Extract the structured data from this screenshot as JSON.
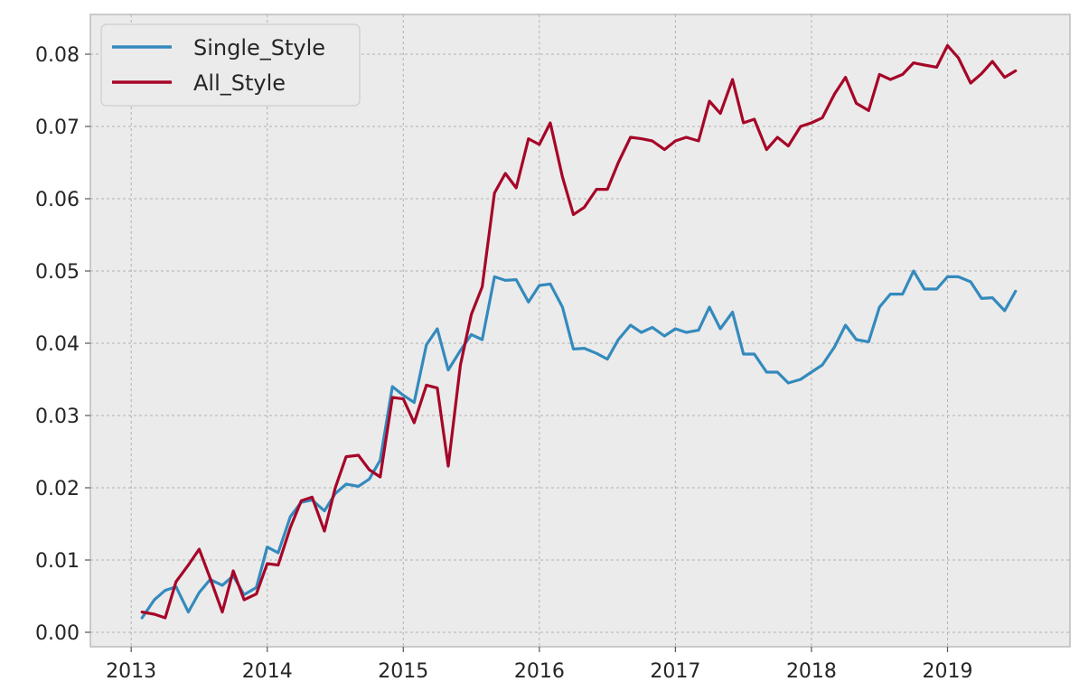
{
  "chart_data": {
    "type": "line",
    "title": "",
    "xlabel": "",
    "ylabel": "",
    "xlim": [
      2012.7,
      2019.9
    ],
    "ylim": [
      -0.002,
      0.0855
    ],
    "x_ticks": [
      "2013",
      "2014",
      "2015",
      "2016",
      "2017",
      "2018",
      "2019"
    ],
    "y_ticks": [
      "0.00",
      "0.01",
      "0.02",
      "0.03",
      "0.04",
      "0.05",
      "0.06",
      "0.07",
      "0.08"
    ],
    "grid": true,
    "legend_position": "top-left",
    "series": [
      {
        "name": "Single_Style",
        "color": "#348abd",
        "x": [
          2013.08,
          2013.17,
          2013.25,
          2013.33,
          2013.42,
          2013.5,
          2013.58,
          2013.67,
          2013.75,
          2013.83,
          2013.92,
          2014.0,
          2014.08,
          2014.17,
          2014.25,
          2014.33,
          2014.42,
          2014.5,
          2014.58,
          2014.67,
          2014.75,
          2014.83,
          2014.92,
          2015.0,
          2015.08,
          2015.17,
          2015.25,
          2015.33,
          2015.42,
          2015.5,
          2015.58,
          2015.67,
          2015.75,
          2015.83,
          2015.92,
          2016.0,
          2016.08,
          2016.17,
          2016.25,
          2016.33,
          2016.42,
          2016.5,
          2016.58,
          2016.67,
          2016.75,
          2016.83,
          2016.92,
          2017.0,
          2017.08,
          2017.17,
          2017.25,
          2017.33,
          2017.42,
          2017.5,
          2017.58,
          2017.67,
          2017.75,
          2017.83,
          2017.92,
          2018.0,
          2018.08,
          2018.17,
          2018.25,
          2018.33,
          2018.42,
          2018.5,
          2018.58,
          2018.67,
          2018.75,
          2018.83,
          2018.92,
          2019.0,
          2019.08,
          2019.17,
          2019.25,
          2019.33,
          2019.42,
          2019.5
        ],
        "values": [
          0.002,
          0.0045,
          0.0058,
          0.0063,
          0.0028,
          0.0055,
          0.0073,
          0.0065,
          0.0078,
          0.0052,
          0.0062,
          0.0118,
          0.011,
          0.016,
          0.018,
          0.0183,
          0.0168,
          0.0192,
          0.0205,
          0.0202,
          0.0212,
          0.0238,
          0.034,
          0.0328,
          0.0318,
          0.0398,
          0.042,
          0.0363,
          0.039,
          0.0412,
          0.0405,
          0.0492,
          0.0487,
          0.0488,
          0.0457,
          0.048,
          0.0482,
          0.045,
          0.0392,
          0.0393,
          0.0386,
          0.0378,
          0.0405,
          0.0425,
          0.0415,
          0.0422,
          0.041,
          0.042,
          0.0415,
          0.0418,
          0.045,
          0.042,
          0.0443,
          0.0385,
          0.0385,
          0.036,
          0.036,
          0.0345,
          0.035,
          0.036,
          0.037,
          0.0395,
          0.0425,
          0.0405,
          0.0402,
          0.045,
          0.0468,
          0.0468,
          0.05,
          0.0475,
          0.0475,
          0.0492,
          0.0492,
          0.0485,
          0.0462,
          0.0463,
          0.0445,
          0.0472
        ]
      },
      {
        "name": "All_Style",
        "color": "#a60628",
        "x": [
          2013.08,
          2013.17,
          2013.25,
          2013.33,
          2013.42,
          2013.5,
          2013.58,
          2013.67,
          2013.75,
          2013.83,
          2013.92,
          2014.0,
          2014.08,
          2014.17,
          2014.25,
          2014.33,
          2014.42,
          2014.5,
          2014.58,
          2014.67,
          2014.75,
          2014.83,
          2014.92,
          2015.0,
          2015.08,
          2015.17,
          2015.25,
          2015.33,
          2015.42,
          2015.5,
          2015.58,
          2015.67,
          2015.75,
          2015.83,
          2015.92,
          2016.0,
          2016.08,
          2016.17,
          2016.25,
          2016.33,
          2016.42,
          2016.5,
          2016.58,
          2016.67,
          2016.75,
          2016.83,
          2016.92,
          2017.0,
          2017.08,
          2017.17,
          2017.25,
          2017.33,
          2017.42,
          2017.5,
          2017.58,
          2017.67,
          2017.75,
          2017.83,
          2017.92,
          2018.0,
          2018.08,
          2018.17,
          2018.25,
          2018.33,
          2018.42,
          2018.5,
          2018.58,
          2018.67,
          2018.75,
          2018.83,
          2018.92,
          2019.0,
          2019.08,
          2019.17,
          2019.25,
          2019.33,
          2019.42,
          2019.5
        ],
        "values": [
          0.0028,
          0.0025,
          0.002,
          0.007,
          0.0093,
          0.0115,
          0.0075,
          0.0028,
          0.0085,
          0.0045,
          0.0053,
          0.0095,
          0.0093,
          0.0145,
          0.0182,
          0.0187,
          0.014,
          0.02,
          0.0243,
          0.0245,
          0.0225,
          0.0215,
          0.0325,
          0.0323,
          0.029,
          0.0342,
          0.0338,
          0.023,
          0.037,
          0.044,
          0.0478,
          0.0608,
          0.0635,
          0.0615,
          0.0683,
          0.0675,
          0.0705,
          0.063,
          0.0578,
          0.0588,
          0.0613,
          0.0613,
          0.065,
          0.0685,
          0.0683,
          0.068,
          0.0668,
          0.068,
          0.0685,
          0.068,
          0.0735,
          0.0718,
          0.0765,
          0.0705,
          0.071,
          0.0668,
          0.0685,
          0.0673,
          0.07,
          0.0705,
          0.0712,
          0.0745,
          0.0768,
          0.0732,
          0.0722,
          0.0772,
          0.0765,
          0.0772,
          0.0788,
          0.0785,
          0.0782,
          0.0812,
          0.0795,
          0.076,
          0.0773,
          0.079,
          0.0768,
          0.0777
        ]
      }
    ]
  }
}
